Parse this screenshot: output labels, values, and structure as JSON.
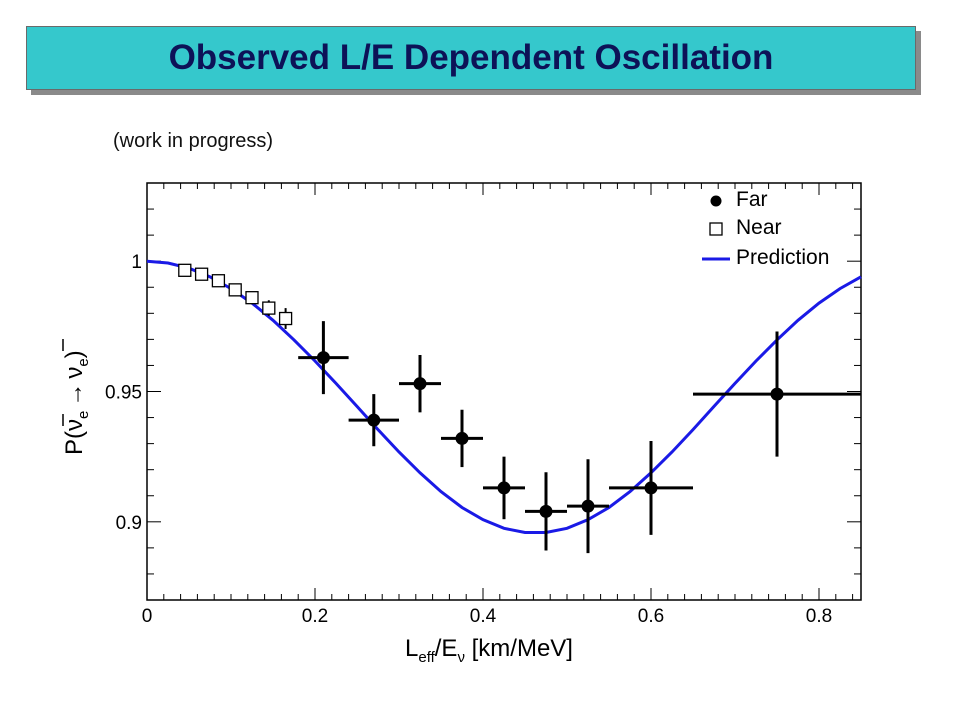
{
  "header": {
    "title": "Observed L/E Dependent Oscillation"
  },
  "note": "(work in progress)",
  "chart_data": {
    "type": "scatter",
    "xlabel_main": "L",
    "xlabel_sub": "eff",
    "xlabel_mid": "/E",
    "xlabel_sub2": "ν",
    "xlabel_tail": " [km/MeV]",
    "ylabel_text": "P(ν",
    "ylabel_sub": "e",
    "ylabel_arrow": "→",
    "ylabel_nu": "ν",
    "ylabel_close": ")",
    "xlim": [
      0,
      0.85
    ],
    "ylim": [
      0.87,
      1.03
    ],
    "x_ticks": [
      "0",
      "0.2",
      "0.4",
      "0.6",
      "0.8"
    ],
    "x_tick_values": [
      0,
      0.2,
      0.4,
      0.6,
      0.8
    ],
    "y_ticks": [
      "0.9",
      "0.95",
      "1"
    ],
    "y_tick_values": [
      0.9,
      0.95,
      1.0
    ],
    "legend_position": "top-right",
    "colors": {
      "far": "#000000",
      "near": "#000000",
      "prediction": "#1a1ae6"
    },
    "series": [
      {
        "name": "Far",
        "marker": "filled-circle",
        "points": [
          {
            "x": 0.21,
            "y": 0.963,
            "xerr": 0.03,
            "yerr": 0.014
          },
          {
            "x": 0.27,
            "y": 0.939,
            "xerr": 0.03,
            "yerr": 0.01
          },
          {
            "x": 0.325,
            "y": 0.953,
            "xerr": 0.025,
            "yerr": 0.011
          },
          {
            "x": 0.375,
            "y": 0.932,
            "xerr": 0.025,
            "yerr": 0.011
          },
          {
            "x": 0.425,
            "y": 0.913,
            "xerr": 0.025,
            "yerr": 0.012
          },
          {
            "x": 0.475,
            "y": 0.904,
            "xerr": 0.025,
            "yerr": 0.015
          },
          {
            "x": 0.525,
            "y": 0.906,
            "xerr": 0.025,
            "yerr": 0.018
          },
          {
            "x": 0.6,
            "y": 0.913,
            "xerr": 0.05,
            "yerr": 0.018
          },
          {
            "x": 0.75,
            "y": 0.949,
            "xerr": 0.1,
            "yerr": 0.024
          }
        ]
      },
      {
        "name": "Near",
        "marker": "open-square",
        "points": [
          {
            "x": 0.045,
            "y": 0.9965,
            "xerr": 0.005,
            "yerr": 0.001
          },
          {
            "x": 0.065,
            "y": 0.995,
            "xerr": 0.005,
            "yerr": 0.001
          },
          {
            "x": 0.085,
            "y": 0.9925,
            "xerr": 0.005,
            "yerr": 0.0015
          },
          {
            "x": 0.105,
            "y": 0.989,
            "xerr": 0.005,
            "yerr": 0.002
          },
          {
            "x": 0.125,
            "y": 0.986,
            "xerr": 0.005,
            "yerr": 0.002
          },
          {
            "x": 0.145,
            "y": 0.982,
            "xerr": 0.005,
            "yerr": 0.003
          },
          {
            "x": 0.165,
            "y": 0.978,
            "xerr": 0.005,
            "yerr": 0.004
          }
        ]
      },
      {
        "name": "Prediction",
        "marker": "line",
        "x": [
          0,
          0.025,
          0.05,
          0.075,
          0.1,
          0.125,
          0.15,
          0.175,
          0.2,
          0.225,
          0.25,
          0.275,
          0.3,
          0.325,
          0.35,
          0.375,
          0.4,
          0.425,
          0.45,
          0.475,
          0.5,
          0.525,
          0.55,
          0.575,
          0.6,
          0.625,
          0.65,
          0.675,
          0.7,
          0.725,
          0.75,
          0.775,
          0.8,
          0.825,
          0.85
        ],
        "y": [
          1.0,
          0.9993,
          0.9973,
          0.994,
          0.9895,
          0.9839,
          0.9773,
          0.9698,
          0.9617,
          0.9531,
          0.9443,
          0.9354,
          0.9268,
          0.9188,
          0.9116,
          0.9055,
          0.9008,
          0.8975,
          0.8959,
          0.8959,
          0.8975,
          0.9008,
          0.9055,
          0.9116,
          0.9188,
          0.9268,
          0.9354,
          0.9443,
          0.9531,
          0.9617,
          0.9698,
          0.9773,
          0.9839,
          0.9895,
          0.994
        ]
      }
    ]
  }
}
